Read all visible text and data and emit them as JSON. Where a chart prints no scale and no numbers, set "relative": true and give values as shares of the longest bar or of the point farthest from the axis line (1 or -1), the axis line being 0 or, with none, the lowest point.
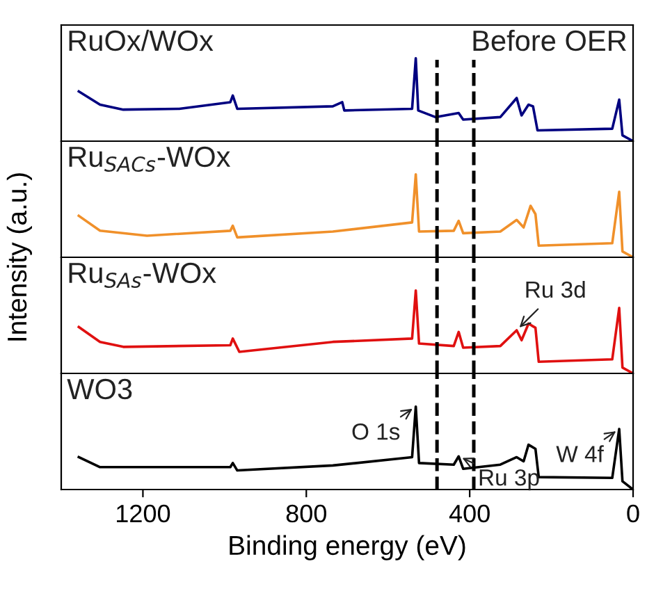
{
  "chart_data": [
    {
      "type": "line",
      "relative": true,
      "xlim": [
        1400,
        0
      ],
      "tick_labels": false,
      "annotations": [
        "Before OER"
      ],
      "ref_lines": [
        {
          "axis": "x",
          "value": 480,
          "color": "#000000",
          "line_style": "dashed"
        },
        {
          "axis": "x",
          "value": 390,
          "color": "#000000",
          "line_style": "dashed"
        }
      ],
      "series": [
        {
          "name": "RuOx/WOx",
          "color": "#000080",
          "x": [
            1357,
            1305,
            1248,
            1111,
            986,
            980,
            969,
            735,
            712,
            707,
            541,
            532,
            526,
            484,
            427,
            416,
            325,
            285,
            273,
            256,
            245,
            234,
            51,
            34,
            26,
            0
          ],
          "values": [
            0.6,
            0.44,
            0.38,
            0.39,
            0.47,
            0.55,
            0.39,
            0.42,
            0.47,
            0.37,
            0.39,
            1.0,
            0.37,
            0.29,
            0.34,
            0.26,
            0.29,
            0.52,
            0.31,
            0.44,
            0.42,
            0.13,
            0.15,
            0.5,
            0.07,
            0
          ]
        }
      ]
    },
    {
      "type": "line",
      "relative": true,
      "xlim": [
        1400,
        0
      ],
      "tick_labels": false,
      "ref_lines": [
        {
          "axis": "x",
          "value": 480,
          "color": "#000000",
          "line_style": "dashed"
        },
        {
          "axis": "x",
          "value": 390,
          "color": "#000000",
          "line_style": "dashed"
        }
      ],
      "series": [
        {
          "name": "Ru$_{SACs}$-WOx",
          "color": "#f0902a",
          "x": [
            1357,
            1305,
            1190,
            986,
            980,
            969,
            735,
            541,
            532,
            524,
            439,
            427,
            416,
            325,
            285,
            268,
            251,
            239,
            231,
            51,
            34,
            26,
            0
          ],
          "values": [
            0.5,
            0.32,
            0.26,
            0.32,
            0.38,
            0.24,
            0.31,
            0.42,
            1.0,
            0.31,
            0.32,
            0.44,
            0.29,
            0.31,
            0.45,
            0.36,
            0.62,
            0.52,
            0.14,
            0.17,
            0.79,
            0.07,
            0
          ]
        }
      ]
    },
    {
      "type": "line",
      "relative": true,
      "xlim": [
        1400,
        0
      ],
      "tick_labels": false,
      "ylabel": "Intensity (a.u.)",
      "annotations": [
        {
          "text": "Ru 3d",
          "x": 285,
          "y": 0.52
        }
      ],
      "ref_lines": [
        {
          "axis": "x",
          "value": 480,
          "color": "#000000",
          "line_style": "dashed"
        },
        {
          "axis": "x",
          "value": 390,
          "color": "#000000",
          "line_style": "dashed"
        }
      ],
      "series": [
        {
          "name": "Ru$_{SAs}$-WOx",
          "color": "#e01010",
          "x": [
            1357,
            1305,
            1248,
            986,
            980,
            964,
            735,
            541,
            532,
            524,
            439,
            427,
            416,
            325,
            285,
            273,
            256,
            239,
            231,
            51,
            34,
            26,
            0
          ],
          "values": [
            0.56,
            0.38,
            0.32,
            0.34,
            0.42,
            0.26,
            0.38,
            0.42,
            1.0,
            0.36,
            0.33,
            0.5,
            0.31,
            0.33,
            0.52,
            0.4,
            0.6,
            0.55,
            0.14,
            0.17,
            0.79,
            0.07,
            0
          ]
        }
      ]
    },
    {
      "type": "line",
      "relative": true,
      "xlim": [
        1400,
        0
      ],
      "xticks": [
        1200,
        800,
        400,
        0
      ],
      "tick_labels": "x",
      "xlabel": "Binding energy (eV)",
      "annotations": [
        {
          "text": "O 1s",
          "x": 532,
          "y": 1.0
        },
        {
          "text": "W 4f",
          "x": 34,
          "y": 0.73
        },
        {
          "text": "Ru 3p",
          "x": 427,
          "y": 0.4
        }
      ],
      "ref_lines": [
        {
          "axis": "x",
          "value": 480,
          "color": "#000000",
          "line_style": "dashed"
        },
        {
          "axis": "x",
          "value": 390,
          "color": "#000000",
          "line_style": "dashed"
        }
      ],
      "series": [
        {
          "name": "WO3",
          "color": "#000000",
          "x": [
            1357,
            1305,
            986,
            980,
            969,
            735,
            541,
            532,
            524,
            439,
            427,
            416,
            325,
            285,
            268,
            256,
            239,
            231,
            51,
            34,
            26,
            0
          ],
          "values": [
            0.39,
            0.27,
            0.27,
            0.32,
            0.23,
            0.29,
            0.39,
            1.0,
            0.32,
            0.3,
            0.4,
            0.25,
            0.3,
            0.39,
            0.34,
            0.54,
            0.49,
            0.15,
            0.14,
            0.73,
            0.1,
            0
          ]
        }
      ]
    }
  ]
}
